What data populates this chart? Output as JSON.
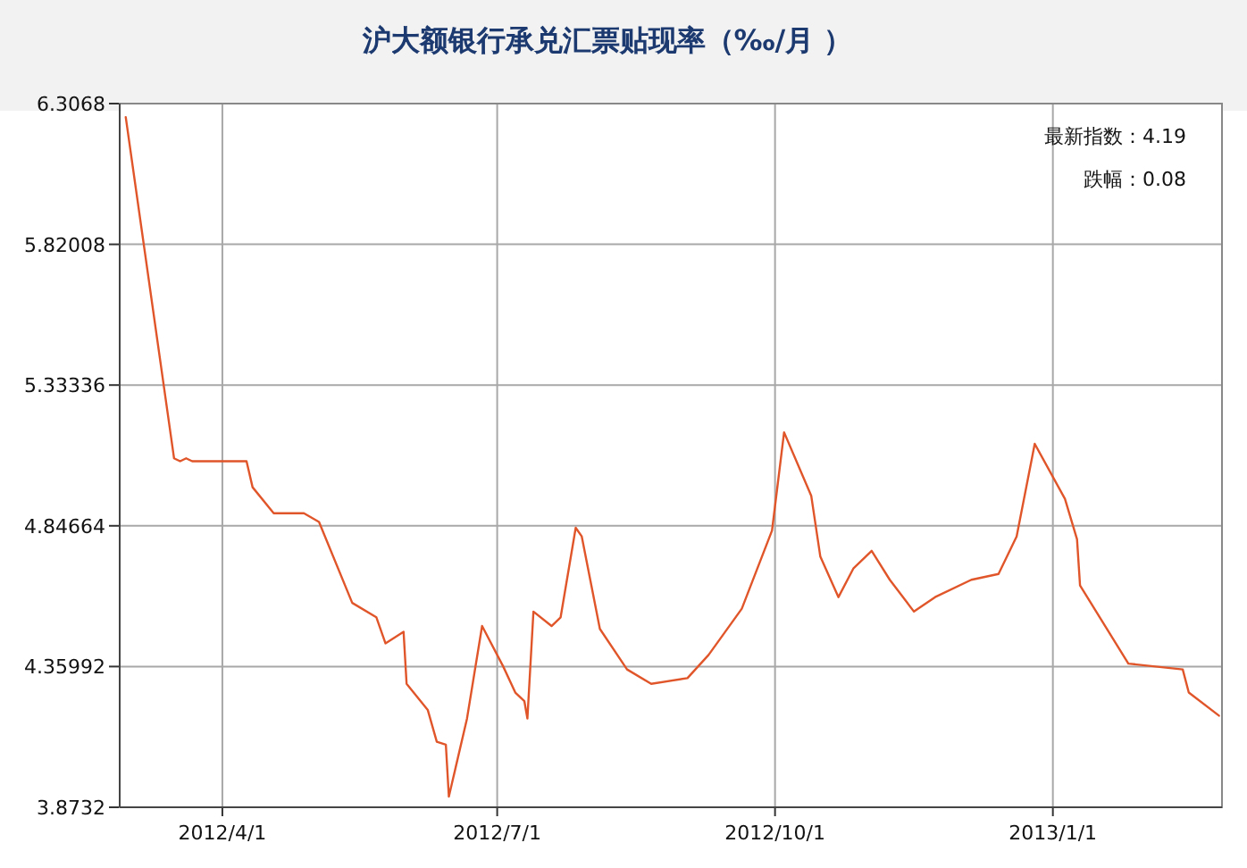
{
  "chart_data": {
    "type": "line",
    "title": "沪大额银行承兑汇票贴现率（‰/月 ）",
    "x": [
      "2012-02-29",
      "2012-03-16",
      "2012-03-18",
      "2012-03-20",
      "2012-03-22",
      "2012-04-09",
      "2012-04-11",
      "2012-04-18",
      "2012-04-28",
      "2012-05-03",
      "2012-05-14",
      "2012-05-22",
      "2012-05-25",
      "2012-05-31",
      "2012-06-01",
      "2012-06-08",
      "2012-06-11",
      "2012-06-14",
      "2012-06-15",
      "2012-06-21",
      "2012-06-26",
      "2012-07-03",
      "2012-07-07",
      "2012-07-10",
      "2012-07-11",
      "2012-07-13",
      "2012-07-19",
      "2012-07-22",
      "2012-07-27",
      "2012-07-29",
      "2012-08-04",
      "2012-08-13",
      "2012-08-21",
      "2012-09-02",
      "2012-09-09",
      "2012-09-20",
      "2012-09-30",
      "2012-10-04",
      "2012-10-13",
      "2012-10-16",
      "2012-10-22",
      "2012-10-27",
      "2012-11-02",
      "2012-11-08",
      "2012-11-16",
      "2012-11-23",
      "2012-12-05",
      "2012-12-14",
      "2012-12-20",
      "2012-12-26",
      "2013-01-05",
      "2013-01-09",
      "2013-01-10",
      "2013-01-26",
      "2013-02-13",
      "2013-02-15",
      "2013-02-25"
    ],
    "series": [
      {
        "color": "#e0562a",
        "values": [
          6.26,
          5.08,
          5.07,
          5.08,
          5.07,
          5.07,
          4.98,
          4.89,
          4.89,
          4.86,
          4.58,
          4.53,
          4.44,
          4.48,
          4.3,
          4.21,
          4.1,
          4.09,
          3.91,
          4.18,
          4.5,
          4.36,
          4.27,
          4.24,
          4.18,
          4.55,
          4.5,
          4.53,
          4.84,
          4.81,
          4.49,
          4.35,
          4.3,
          4.32,
          4.4,
          4.56,
          4.83,
          5.17,
          4.95,
          4.74,
          4.6,
          4.7,
          4.76,
          4.66,
          4.55,
          4.6,
          4.66,
          4.68,
          4.81,
          5.13,
          4.94,
          4.8,
          4.64,
          4.37,
          4.35,
          4.27,
          4.19
        ]
      }
    ],
    "xlim": [
      "2012-02-27",
      "2013-02-26"
    ],
    "xticks": [
      {
        "value": "2012-04-01",
        "label": "2012/4/1"
      },
      {
        "value": "2012-07-01",
        "label": "2012/7/1"
      },
      {
        "value": "2012-10-01",
        "label": "2012/10/1"
      },
      {
        "value": "2013-01-01",
        "label": "2013/1/1"
      }
    ],
    "ylim": [
      3.8732,
      6.3068
    ],
    "yticks": [
      3.8732,
      4.35992,
      4.84664,
      5.33336,
      5.82008,
      6.3068
    ],
    "grid": true,
    "annotations": [
      "最新指数：4.19",
      "跌幅：0.08"
    ]
  }
}
